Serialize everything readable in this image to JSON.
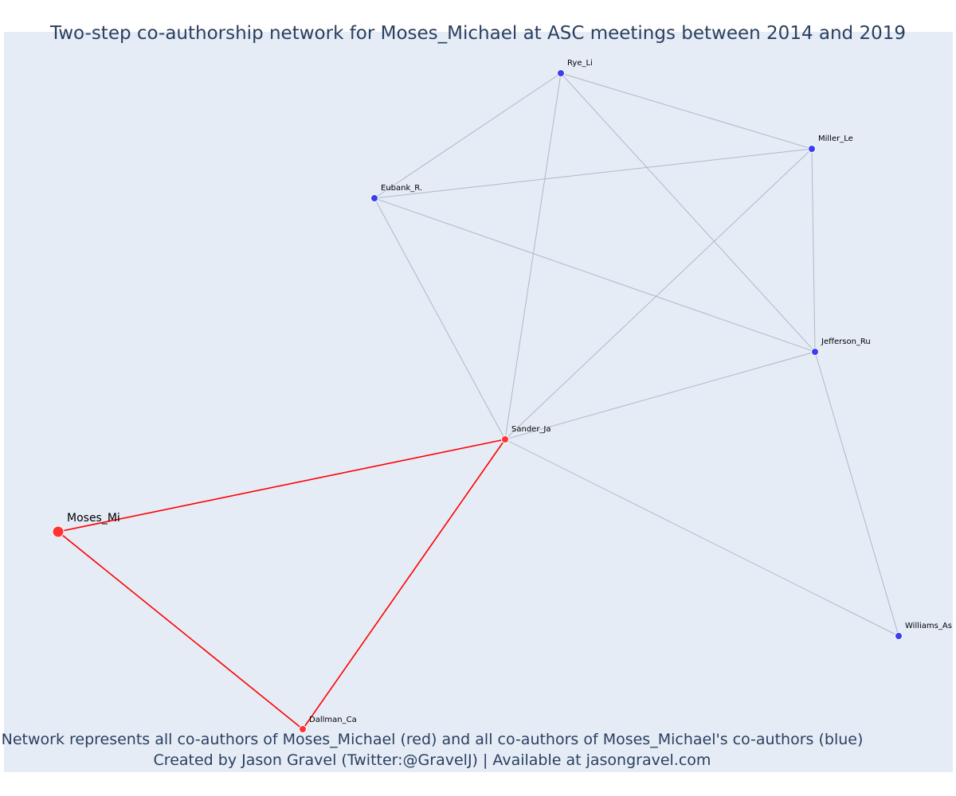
{
  "title": "Two-step co-authorship network for Moses_Michael at ASC meetings between 2014 and 2019",
  "caption": {
    "line1": "Network represents all co-authors of Moses_Michael (red) and all co-authors of Moses_Michael's co-authors (blue)",
    "line2": "Created by Jason Gravel (Twitter:@GravelJ) | Available at jasongravel.com"
  },
  "colors": {
    "background": "#e5ecf6",
    "direct_edge": "#ff0000",
    "indirect_edge": "#b3b6c8",
    "direct_node": "#ff3333",
    "indirect_node": "#3b3ef0",
    "node_border": "#ffffff"
  },
  "network": {
    "nodes": [
      {
        "id": "moses",
        "label": "Moses_Mi",
        "group": "focal"
      },
      {
        "id": "sander",
        "label": "Sander_Ja",
        "group": "coauthor"
      },
      {
        "id": "dallman",
        "label": "Dallman_Ca",
        "group": "coauthor"
      },
      {
        "id": "rye",
        "label": "Rye_Li",
        "group": "second_step"
      },
      {
        "id": "miller",
        "label": "Miller_Le",
        "group": "second_step"
      },
      {
        "id": "eubank",
        "label": "Eubank_R.",
        "group": "second_step"
      },
      {
        "id": "jefferson",
        "label": "Jefferson_Ru",
        "group": "second_step"
      },
      {
        "id": "williams",
        "label": "Williams_As",
        "group": "second_step"
      }
    ],
    "edges": [
      {
        "source": "moses",
        "target": "sander",
        "type": "direct"
      },
      {
        "source": "moses",
        "target": "dallman",
        "type": "direct"
      },
      {
        "source": "sander",
        "target": "dallman",
        "type": "direct"
      },
      {
        "source": "rye",
        "target": "eubank",
        "type": "indirect"
      },
      {
        "source": "rye",
        "target": "miller",
        "type": "indirect"
      },
      {
        "source": "rye",
        "target": "sander",
        "type": "indirect"
      },
      {
        "source": "rye",
        "target": "jefferson",
        "type": "indirect"
      },
      {
        "source": "eubank",
        "target": "miller",
        "type": "indirect"
      },
      {
        "source": "eubank",
        "target": "jefferson",
        "type": "indirect"
      },
      {
        "source": "eubank",
        "target": "sander",
        "type": "indirect"
      },
      {
        "source": "miller",
        "target": "jefferson",
        "type": "indirect"
      },
      {
        "source": "miller",
        "target": "sander",
        "type": "indirect"
      },
      {
        "source": "jefferson",
        "target": "sander",
        "type": "indirect"
      },
      {
        "source": "jefferson",
        "target": "williams",
        "type": "indirect"
      },
      {
        "source": "sander",
        "target": "williams",
        "type": "indirect"
      }
    ]
  }
}
